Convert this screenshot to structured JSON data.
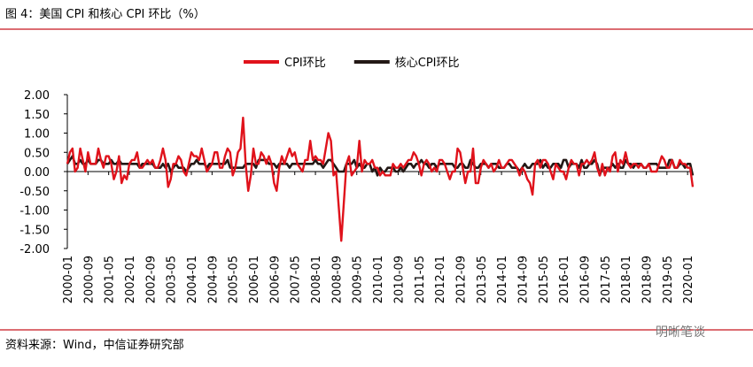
{
  "chart_data": {
    "type": "line",
    "title": "图 4：美国 CPI 和核心 CPI 环比（%）",
    "source": "资料来源：Wind，中信证券研究部",
    "watermark": "明晰笔谈",
    "categories": [
      "2000-01",
      null,
      null,
      null,
      null,
      null,
      null,
      null,
      "2000-09",
      null,
      null,
      null,
      null,
      null,
      null,
      null,
      "2001-05",
      null,
      null,
      null,
      null,
      null,
      null,
      null,
      "2002-01",
      null,
      null,
      null,
      null,
      null,
      null,
      null,
      "2002-09",
      null,
      null,
      null,
      null,
      null,
      null,
      null,
      "2003-05",
      null,
      null,
      null,
      null,
      null,
      null,
      null,
      "2004-01",
      null,
      null,
      null,
      null,
      null,
      null,
      null,
      "2004-09",
      null,
      null,
      null,
      null,
      null,
      null,
      null,
      "2005-05",
      null,
      null,
      null,
      null,
      null,
      null,
      null,
      "2006-01",
      null,
      null,
      null,
      null,
      null,
      null,
      null,
      "2006-09",
      null,
      null,
      null,
      null,
      null,
      null,
      null,
      "2007-05",
      null,
      null,
      null,
      null,
      null,
      null,
      null,
      "2008-01",
      null,
      null,
      null,
      null,
      null,
      null,
      null,
      "2008-09",
      null,
      null,
      null,
      null,
      null,
      null,
      null,
      "2009-05",
      null,
      null,
      null,
      null,
      null,
      null,
      null,
      "2010-01",
      null,
      null,
      null,
      null,
      null,
      null,
      null,
      "2010-09",
      null,
      null,
      null,
      null,
      null,
      null,
      null,
      "2011-05",
      null,
      null,
      null,
      null,
      null,
      null,
      null,
      "2012-01",
      null,
      null,
      null,
      null,
      null,
      null,
      null,
      "2012-09",
      null,
      null,
      null,
      null,
      null,
      null,
      null,
      "2013-05",
      null,
      null,
      null,
      null,
      null,
      null,
      null,
      "2014-01",
      null,
      null,
      null,
      null,
      null,
      null,
      null,
      "2014-09",
      null,
      null,
      null,
      null,
      null,
      null,
      null,
      "2015-05",
      null,
      null,
      null,
      null,
      null,
      null,
      null,
      "2016-01",
      null,
      null,
      null,
      null,
      null,
      null,
      null,
      "2016-09",
      null,
      null,
      null,
      null,
      null,
      null,
      null,
      "2017-05",
      null,
      null,
      null,
      null,
      null,
      null,
      null,
      "2018-01",
      null,
      null,
      null,
      null,
      null,
      null,
      null,
      "2018-09",
      null,
      null,
      null,
      null,
      null,
      null,
      null,
      "2019-05",
      null,
      null,
      null,
      null,
      null,
      null,
      null,
      "2020-01",
      null,
      null
    ],
    "series": [
      {
        "name": "CPI环比",
        "color": "#e0121b",
        "values": [
          0.2,
          0.5,
          0.6,
          0.0,
          0.1,
          0.6,
          0.3,
          0.0,
          0.5,
          0.2,
          0.2,
          0.2,
          0.6,
          0.3,
          0.1,
          0.4,
          0.4,
          0.2,
          -0.2,
          0.0,
          0.4,
          -0.3,
          -0.1,
          -0.2,
          0.2,
          0.3,
          0.3,
          0.5,
          0.1,
          0.1,
          0.2,
          0.3,
          0.2,
          0.3,
          0.1,
          0.1,
          0.3,
          0.6,
          0.3,
          -0.4,
          -0.2,
          0.2,
          0.2,
          0.4,
          0.3,
          0.0,
          -0.1,
          0.2,
          0.5,
          0.4,
          0.4,
          0.3,
          0.6,
          0.3,
          0.0,
          0.1,
          0.2,
          0.5,
          0.5,
          0.1,
          0.1,
          0.4,
          0.6,
          0.5,
          -0.1,
          0.1,
          0.5,
          0.6,
          1.4,
          0.2,
          -0.5,
          -0.1,
          0.6,
          0.2,
          0.2,
          0.5,
          0.4,
          0.2,
          0.4,
          0.2,
          -0.3,
          -0.5,
          0.1,
          0.4,
          0.2,
          0.4,
          0.6,
          0.4,
          0.5,
          0.2,
          0.1,
          0.0,
          0.3,
          0.3,
          0.8,
          0.3,
          0.4,
          0.3,
          0.3,
          0.2,
          0.6,
          1.0,
          0.8,
          -0.1,
          0.0,
          -0.9,
          -1.8,
          -0.8,
          0.2,
          0.4,
          -0.1,
          0.0,
          0.1,
          0.8,
          0.0,
          0.3,
          0.2,
          0.2,
          0.3,
          0.1,
          0.1,
          -0.1,
          0.0,
          -0.1,
          -0.1,
          -0.1,
          0.2,
          0.1,
          0.1,
          0.2,
          0.1,
          0.2,
          0.3,
          0.3,
          0.5,
          0.4,
          0.2,
          -0.1,
          0.2,
          0.3,
          0.2,
          0.0,
          0.1,
          0.0,
          0.3,
          0.3,
          0.2,
          0.0,
          -0.2,
          0.0,
          0.0,
          0.6,
          0.5,
          0.1,
          -0.3,
          0.0,
          0.0,
          0.6,
          -0.3,
          -0.3,
          0.1,
          0.3,
          0.2,
          0.1,
          0.2,
          0.0,
          0.1,
          0.3,
          0.1,
          0.1,
          0.2,
          0.3,
          0.3,
          0.2,
          0.1,
          -0.1,
          0.1,
          0.0,
          -0.2,
          -0.3,
          -0.6,
          0.2,
          0.3,
          0.1,
          0.3,
          0.3,
          0.2,
          0.0,
          -0.2,
          0.2,
          0.1,
          0.0,
          0.0,
          -0.2,
          0.1,
          0.3,
          0.2,
          0.2,
          -0.1,
          0.2,
          0.2,
          0.3,
          0.2,
          0.3,
          0.5,
          0.1,
          -0.1,
          0.2,
          -0.1,
          0.1,
          0.0,
          0.4,
          0.5,
          0.0,
          0.3,
          0.2,
          0.5,
          0.2,
          0.1,
          0.2,
          0.2,
          0.1,
          0.2,
          0.1,
          0.1,
          0.2,
          0.0,
          0.0,
          0.0,
          0.2,
          0.4,
          0.3,
          0.1,
          0.1,
          0.3,
          0.1,
          0.1,
          0.3,
          0.2,
          0.2,
          0.1,
          0.1,
          -0.4
        ]
      },
      {
        "name": "核心CPI环比",
        "color": "#231815",
        "values": [
          0.2,
          0.3,
          0.4,
          0.2,
          0.2,
          0.3,
          0.2,
          0.2,
          0.3,
          0.2,
          0.2,
          0.2,
          0.3,
          0.3,
          0.2,
          0.2,
          0.2,
          0.3,
          0.2,
          0.2,
          0.3,
          0.2,
          0.2,
          0.2,
          0.2,
          0.2,
          0.2,
          0.2,
          0.1,
          0.2,
          0.2,
          0.2,
          0.2,
          0.2,
          0.1,
          0.1,
          0.1,
          0.2,
          0.1,
          0.2,
          0.0,
          0.1,
          0.2,
          0.1,
          0.1,
          0.1,
          0.0,
          0.1,
          0.2,
          0.2,
          0.3,
          0.2,
          0.2,
          0.2,
          0.1,
          0.2,
          0.2,
          0.2,
          0.2,
          0.2,
          0.2,
          0.2,
          0.3,
          0.1,
          0.1,
          0.1,
          0.1,
          0.1,
          0.1,
          0.2,
          0.2,
          0.2,
          0.2,
          0.1,
          0.3,
          0.3,
          0.3,
          0.3,
          0.2,
          0.2,
          0.2,
          0.1,
          0.2,
          0.2,
          0.2,
          0.2,
          0.1,
          0.2,
          0.2,
          0.2,
          0.2,
          0.2,
          0.2,
          0.2,
          0.2,
          0.2,
          0.3,
          0.2,
          0.2,
          0.1,
          0.2,
          0.3,
          0.3,
          0.2,
          0.1,
          0.0,
          0.0,
          0.0,
          0.2,
          0.2,
          0.2,
          0.3,
          0.1,
          0.2,
          0.1,
          0.1,
          0.2,
          0.2,
          0.0,
          0.1,
          -0.1,
          0.1,
          0.0,
          0.0,
          0.1,
          0.1,
          0.1,
          0.0,
          0.0,
          0.1,
          0.0,
          0.1,
          0.2,
          0.2,
          0.1,
          0.2,
          0.2,
          0.3,
          0.2,
          0.2,
          0.1,
          0.2,
          0.2,
          0.1,
          0.2,
          0.2,
          0.2,
          0.2,
          0.2,
          0.2,
          0.1,
          0.1,
          0.2,
          0.2,
          0.1,
          0.1,
          0.3,
          0.2,
          0.1,
          0.1,
          0.2,
          0.2,
          0.2,
          0.1,
          0.2,
          0.2,
          0.2,
          0.1,
          0.1,
          0.1,
          0.2,
          0.2,
          0.1,
          0.1,
          0.1,
          0.0,
          0.1,
          0.2,
          0.1,
          0.1,
          0.2,
          0.2,
          0.2,
          0.3,
          0.1,
          0.2,
          0.1,
          0.1,
          0.2,
          0.2,
          0.2,
          0.1,
          0.3,
          0.3,
          0.1,
          0.2,
          0.2,
          0.2,
          0.1,
          0.3,
          0.1,
          0.1,
          0.2,
          0.2,
          0.3,
          0.2,
          -0.1,
          0.1,
          0.1,
          0.1,
          0.1,
          0.2,
          0.1,
          0.2,
          0.1,
          0.1,
          0.3,
          0.2,
          0.2,
          0.1,
          0.2,
          0.2,
          0.2,
          0.1,
          0.1,
          0.2,
          0.2,
          0.2,
          0.2,
          0.1,
          0.1,
          0.1,
          0.1,
          0.3,
          0.3,
          0.1,
          0.1,
          0.2,
          0.2,
          0.1,
          0.2,
          0.2,
          -0.1
        ]
      }
    ],
    "ylim": [
      -2,
      2
    ],
    "yticks": [
      {
        "value": 2,
        "label": "2.00"
      },
      {
        "value": 1.5,
        "label": "1.50"
      },
      {
        "value": 1,
        "label": "1.00"
      },
      {
        "value": 0.5,
        "label": "0.50"
      },
      {
        "value": 0,
        "label": "0.00"
      },
      {
        "value": -0.5,
        "label": "-0.50"
      },
      {
        "value": -1,
        "label": "-1.00"
      },
      {
        "value": -1.5,
        "label": "-1.50"
      },
      {
        "value": -2,
        "label": "-2.00"
      }
    ],
    "legend": "top"
  }
}
